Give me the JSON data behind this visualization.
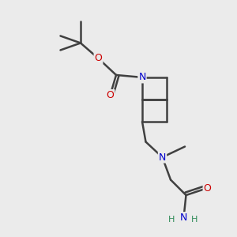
{
  "bg_color": "#ebebeb",
  "atom_colors": {
    "C": "#000000",
    "N": "#0000cc",
    "O": "#cc0000",
    "H": "#2e8b57"
  },
  "bond_color": "#404040",
  "bond_width": 1.8,
  "figsize": [
    3.0,
    3.0
  ],
  "dpi": 100,
  "xlim": [
    0,
    10
  ],
  "ylim": [
    0,
    10
  ]
}
